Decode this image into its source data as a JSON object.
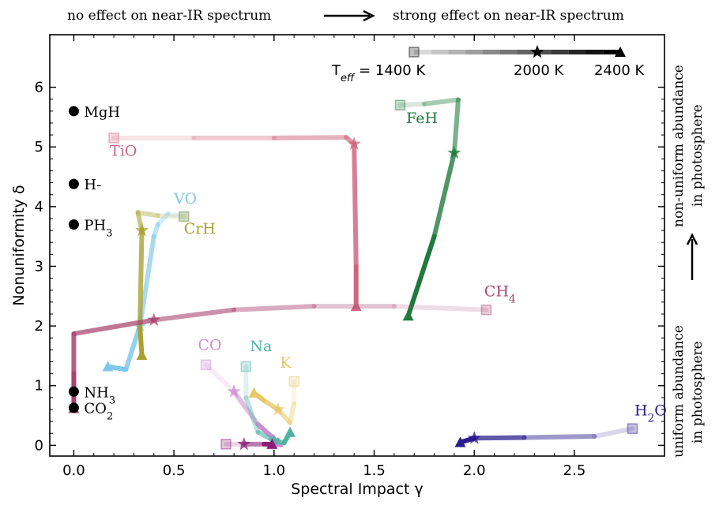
{
  "chart_data": {
    "type": "line",
    "xlabel": "Spectral Impact γ",
    "ylabel": "Nonuniformity δ",
    "xlim": [
      -0.12,
      2.95
    ],
    "ylim": [
      -0.18,
      6.88
    ],
    "xticks": [
      0.0,
      0.5,
      1.0,
      1.5,
      2.0,
      2.5
    ],
    "xtick_labels": [
      "0.0",
      "0.5",
      "1.0",
      "1.5",
      "2.0",
      "2.5"
    ],
    "yticks": [
      0,
      1,
      2,
      3,
      4,
      5,
      6
    ],
    "ytick_labels": [
      "0",
      "1",
      "2",
      "3",
      "4",
      "5",
      "6"
    ],
    "grid": false,
    "top_annotation": {
      "left": "no effect on near-IR spectrum",
      "right": "strong effect on near-IR spectrum"
    },
    "right_annotation": {
      "bottom_line1": "uniform abundance",
      "bottom_line2": "in photosphere",
      "top_line1": "non-uniform abundance",
      "top_line2": "in photosphere"
    },
    "legend": {
      "placement": "top-right",
      "teff_prefix": "T",
      "teff_sub": "eff",
      "labels": [
        "= 1400 K",
        "2000 K",
        "2400 K"
      ],
      "markers": [
        "square",
        "star",
        "triangle"
      ]
    },
    "points": [
      {
        "label": "MgH",
        "x": 0.0,
        "y": 5.6
      },
      {
        "label": "H-",
        "x": 0.0,
        "y": 4.38
      },
      {
        "label": "PH",
        "sub": "3",
        "x": 0.0,
        "y": 3.7
      },
      {
        "label": "NH",
        "sub": "3",
        "x": 0.0,
        "y": 0.9
      },
      {
        "label": "CO",
        "sub": "2",
        "x": 0.0,
        "y": 0.63
      }
    ],
    "series": [
      {
        "name": "TiO",
        "color": "#d0677f",
        "x": [
          0.2,
          0.6,
          1.0,
          1.36,
          1.4,
          1.41,
          1.41
        ],
        "y": [
          5.15,
          5.15,
          5.15,
          5.16,
          5.05,
          3.0,
          2.33
        ],
        "label_at": [
          0.18,
          4.85
        ]
      },
      {
        "name": "FeH",
        "color": "#1f7a3c",
        "x": [
          1.63,
          1.75,
          1.92,
          1.9,
          1.8,
          1.67
        ],
        "y": [
          5.7,
          5.72,
          5.79,
          4.9,
          3.5,
          2.17
        ],
        "label_at": [
          1.66,
          5.4
        ]
      },
      {
        "name": "VO",
        "color": "#7ec8ec",
        "x": [
          0.55,
          0.47,
          0.42,
          0.4,
          0.33,
          0.26,
          0.17
        ],
        "y": [
          3.84,
          3.88,
          3.7,
          3.5,
          2.0,
          1.27,
          1.32
        ],
        "label_at": [
          0.5,
          4.05
        ]
      },
      {
        "name": "CrH",
        "color": "#a8a031",
        "x": [
          0.55,
          0.42,
          0.32,
          0.34,
          0.33,
          0.34
        ],
        "y": [
          3.83,
          3.85,
          3.9,
          3.6,
          2.0,
          1.51
        ],
        "label_at": [
          0.55,
          3.55
        ]
      },
      {
        "name": "CH",
        "sub": "4",
        "color": "#a8446e",
        "x": [
          2.06,
          1.6,
          1.2,
          0.8,
          0.4,
          0.0,
          0.0,
          0.0
        ],
        "y": [
          2.27,
          2.33,
          2.33,
          2.27,
          2.1,
          1.87,
          1.2,
          0.62
        ],
        "label_at": [
          2.05,
          2.5
        ]
      },
      {
        "name": "CO",
        "color": "#cc8fcf",
        "x": [
          0.66,
          0.8,
          0.92,
          1.02
        ],
        "y": [
          1.35,
          0.9,
          0.35,
          0.05
        ],
        "label_at": [
          0.62,
          1.6
        ]
      },
      {
        "name": "Na",
        "color": "#4fb3a3",
        "x": [
          0.86,
          0.86,
          0.92,
          1.0,
          1.05,
          1.08
        ],
        "y": [
          1.32,
          0.8,
          0.22,
          0.08,
          0.04,
          0.22
        ],
        "label_at": [
          0.88,
          1.58
        ]
      },
      {
        "name": "K",
        "color": "#e8c865",
        "x": [
          1.1,
          1.1,
          1.08,
          1.02,
          0.95,
          0.9
        ],
        "y": [
          1.07,
          0.7,
          0.38,
          0.6,
          0.75,
          0.88
        ],
        "label_at": [
          1.03,
          1.3
        ]
      },
      {
        "name": "",
        "color": "#8b1e7a",
        "x": [
          0.76,
          0.85,
          0.95,
          0.99
        ],
        "y": [
          0.02,
          0.02,
          0.02,
          0.02
        ],
        "label_at": null
      },
      {
        "name": "H",
        "sub": "2",
        "suffix": "O",
        "color": "#2a1a8c",
        "x": [
          2.79,
          2.6,
          2.25,
          2.0,
          1.93
        ],
        "y": [
          0.28,
          0.15,
          0.13,
          0.12,
          0.05
        ],
        "label_at": [
          2.8,
          0.5
        ]
      }
    ]
  }
}
